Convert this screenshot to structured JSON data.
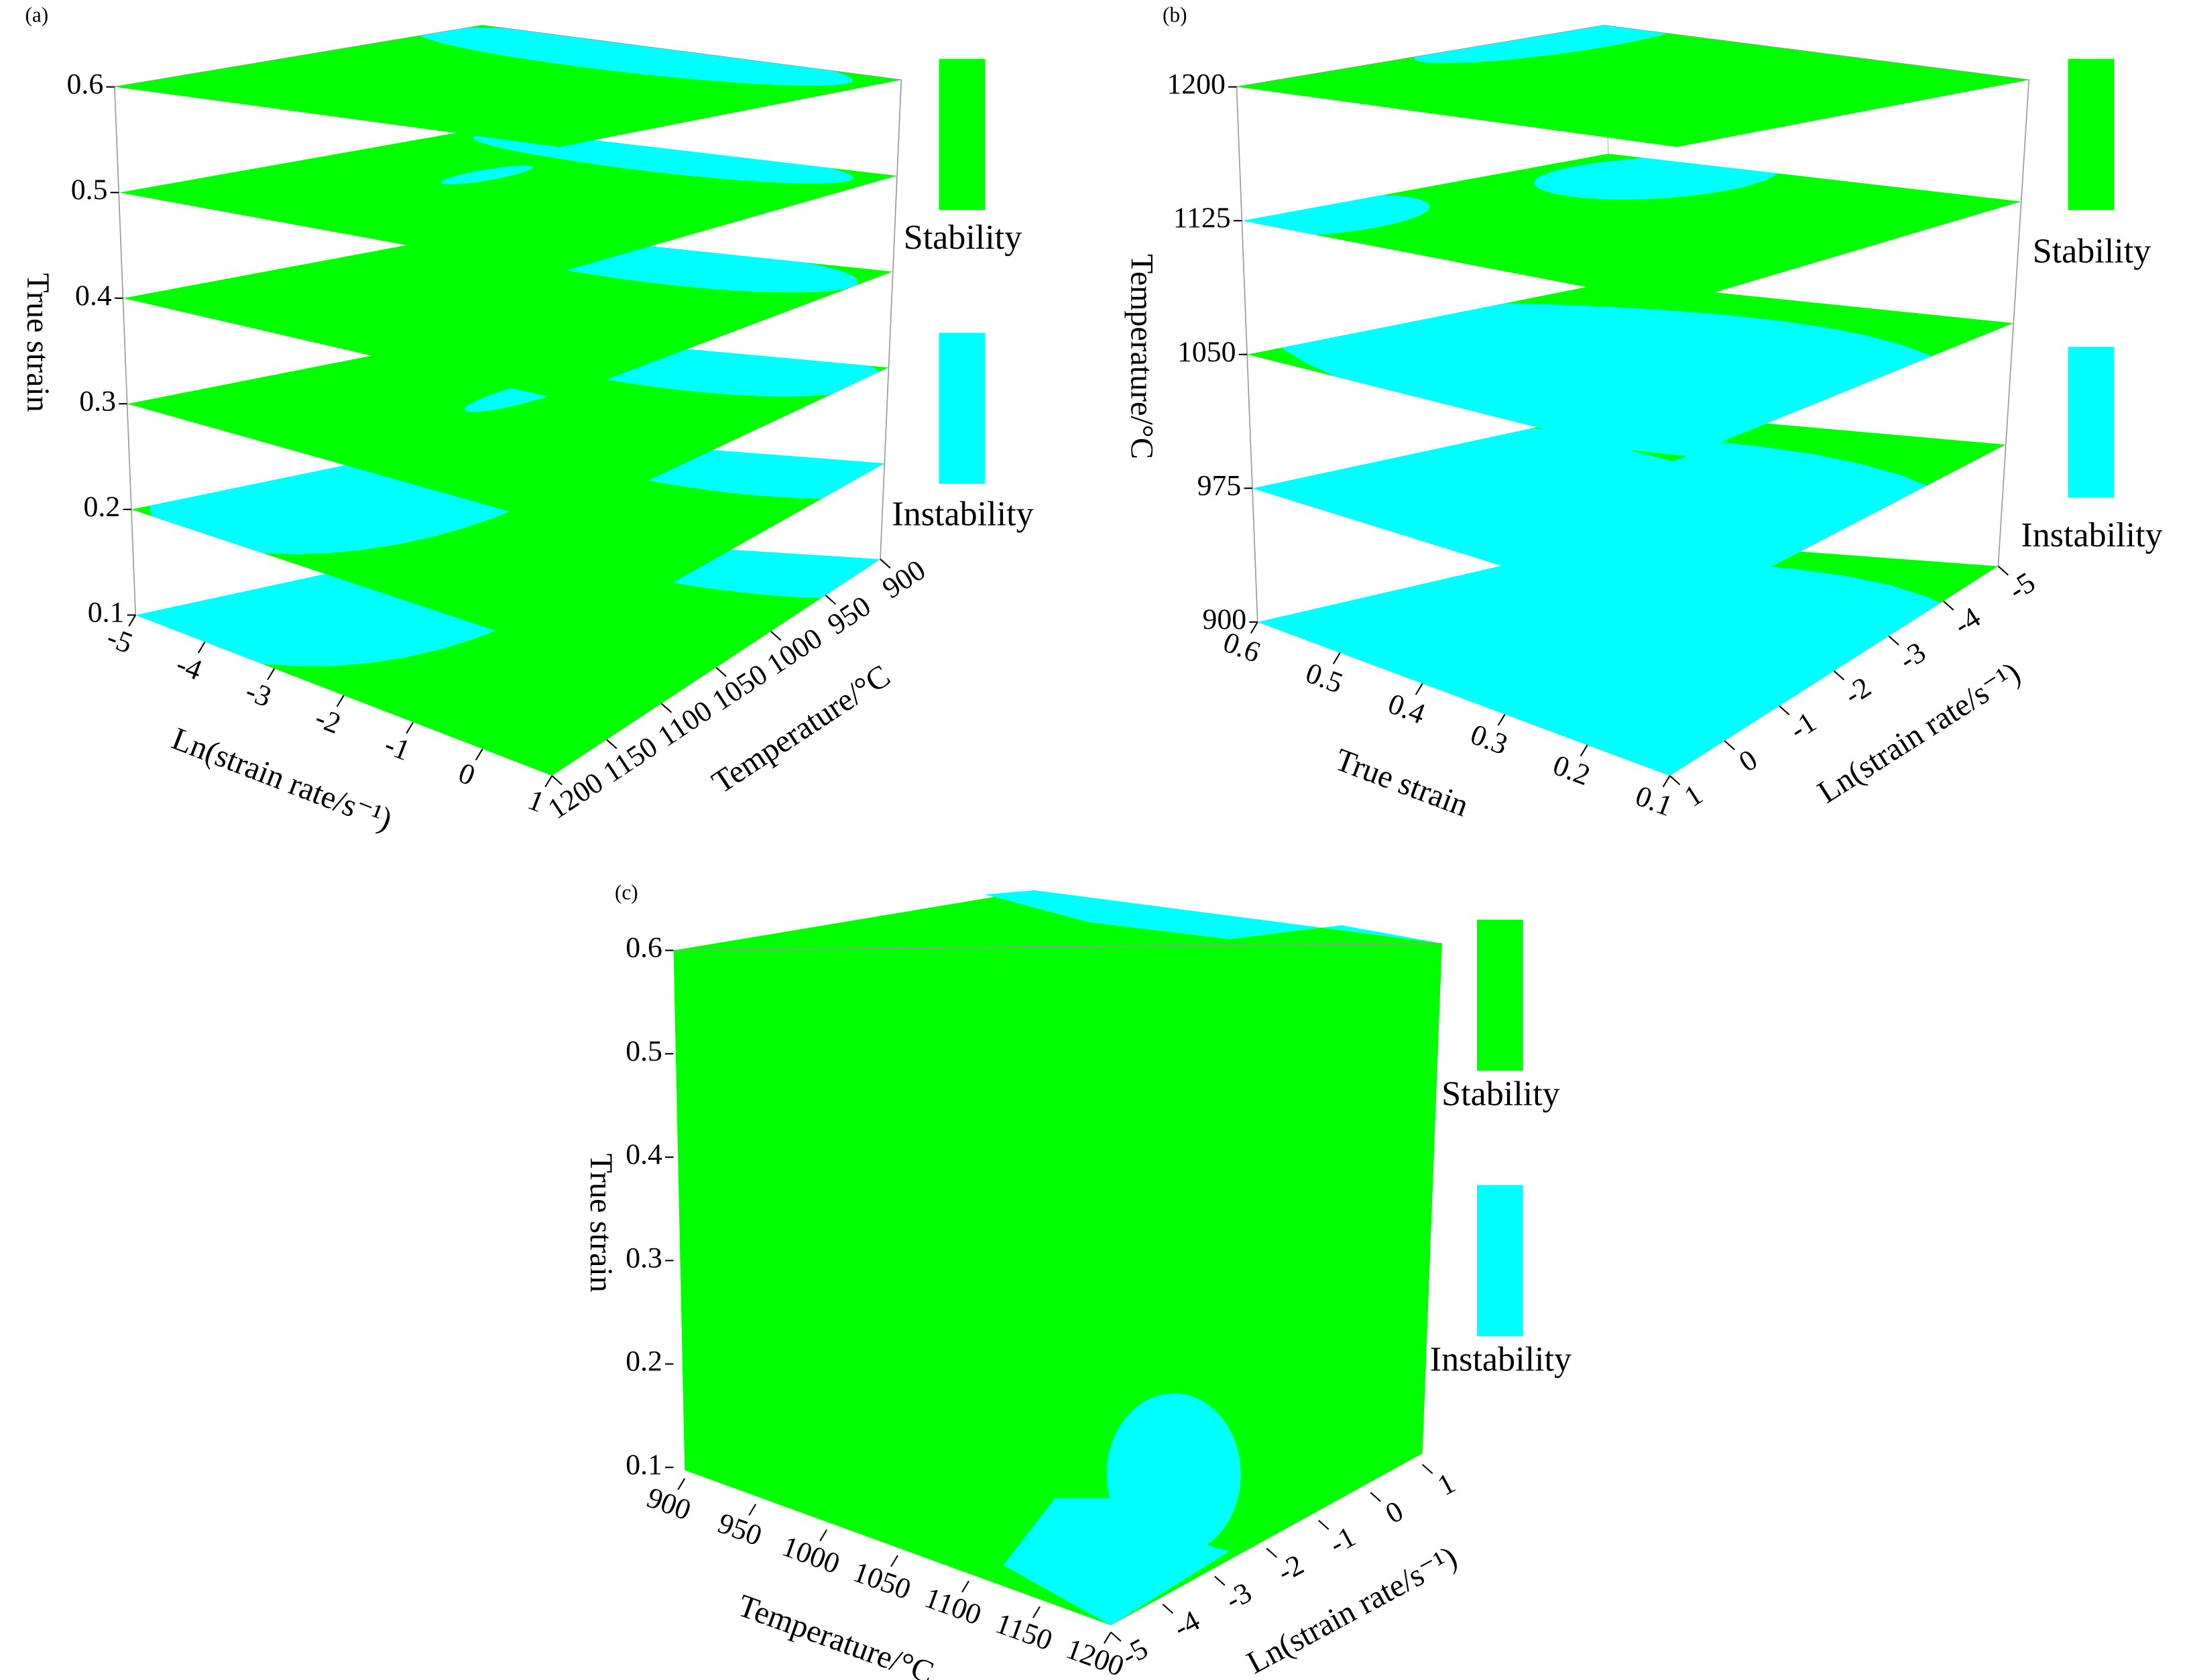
{
  "chart_data": [
    {
      "type": "slice3d",
      "panel": "(a)",
      "zlabel": "True strain",
      "zlim": [
        0.1,
        0.6
      ],
      "zticks": [
        0.1,
        0.2,
        0.3,
        0.4,
        0.5,
        0.6
      ],
      "xlabel": "Ln(strain rate/s⁻¹)",
      "xlim": [
        -5,
        1
      ],
      "xticks": [
        -5,
        -4,
        -3,
        -2,
        -1,
        0,
        1
      ],
      "ylabel": "Temperature/°C",
      "ylim": [
        900,
        1200
      ],
      "yticks": [
        900,
        950,
        1000,
        1050,
        1100,
        1150,
        1200
      ],
      "series": [
        {
          "name": "Stability",
          "color": "#00ff00"
        },
        {
          "name": "Instability",
          "color": "#00ffff"
        }
      ]
    },
    {
      "type": "slice3d",
      "panel": "(b)",
      "zlabel": "Temperature/°C",
      "zlim": [
        900,
        1200
      ],
      "zticks": [
        900,
        975,
        1050,
        1125,
        1200
      ],
      "xlabel": "True strain",
      "xlim": [
        0.1,
        0.6
      ],
      "xticks": [
        0.1,
        0.2,
        0.3,
        0.4,
        0.5,
        0.6
      ],
      "ylabel": "Ln(strain rate/s⁻¹)",
      "ylim": [
        -5,
        1
      ],
      "yticks": [
        -5,
        -4,
        -3,
        -2,
        -1,
        0,
        1
      ],
      "series": [
        {
          "name": "Stability",
          "color": "#00ff00"
        },
        {
          "name": "Instability",
          "color": "#00ffff"
        }
      ]
    },
    {
      "type": "block3d",
      "panel": "(c)",
      "zlabel": "True strain",
      "zlim": [
        0.1,
        0.6
      ],
      "zticks": [
        0.1,
        0.2,
        0.3,
        0.4,
        0.5,
        0.6
      ],
      "xlabel": "Temperature/°C",
      "xlim": [
        900,
        1200
      ],
      "xticks": [
        900,
        950,
        1000,
        1050,
        1100,
        1150,
        1200
      ],
      "ylabel": "Ln(strain rate/s⁻¹)",
      "ylim": [
        -5,
        1
      ],
      "yticks": [
        -5,
        -4,
        -3,
        -2,
        -1,
        0,
        1
      ],
      "series": [
        {
          "name": "Stability",
          "color": "#00ff00"
        },
        {
          "name": "Instability",
          "color": "#00ffff"
        }
      ]
    }
  ]
}
